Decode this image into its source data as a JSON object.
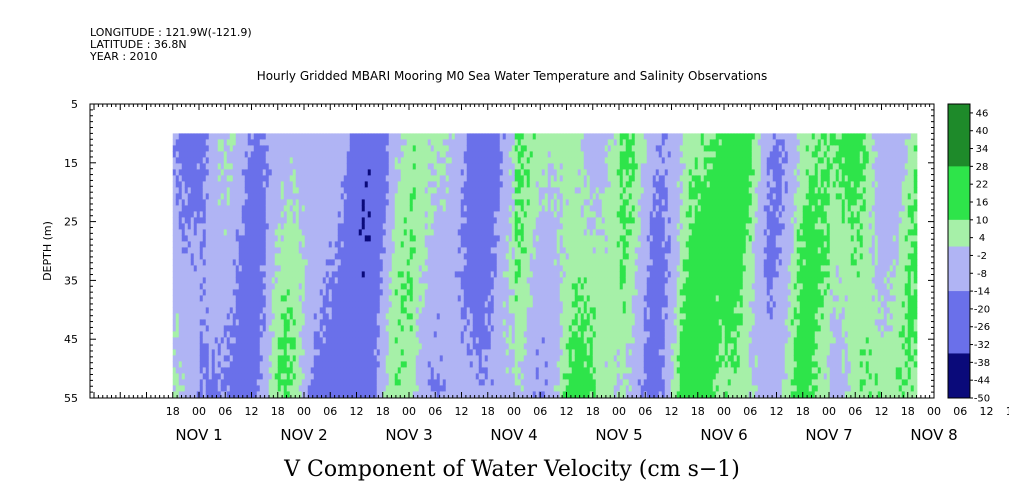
{
  "header": {
    "longitude": "LONGITUDE : 121.9W(-121.9)",
    "latitude": "LATITUDE : 36.8N",
    "year": "YEAR : 2010"
  },
  "chart_data": {
    "type": "heatmap",
    "title": "Hourly Gridded MBARI Mooring M0 Sea Water Temperature and Salinity Observations",
    "xlabel": "V Component of Water Velocity (cm s−1)",
    "ylabel": "DEPTH (m)",
    "y_ticks": [
      5,
      15,
      25,
      35,
      45,
      55
    ],
    "ylim": [
      55,
      5
    ],
    "hour_labels": [
      "18",
      "00",
      "06",
      "12",
      "18",
      "00",
      "06",
      "12",
      "18",
      "00",
      "06",
      "12",
      "18",
      "00",
      "06",
      "12",
      "18",
      "00",
      "06",
      "12",
      "18",
      "00",
      "06",
      "12",
      "18",
      "00",
      "06",
      "12",
      "18",
      "00",
      "06",
      "12",
      "18",
      "00",
      "06",
      "12"
    ],
    "day_labels": [
      "NOV 1",
      "NOV 2",
      "NOV 3",
      "NOV 4",
      "NOV 5",
      "NOV 6",
      "NOV 7",
      "NOV 8"
    ],
    "data_extent": {
      "depth_min": 10,
      "depth_max": 55,
      "start": "Oct 31 18:00",
      "end": "Nov 8 14:00"
    },
    "colorbar_labels": [
      "46",
      "40",
      "34",
      "28",
      "22",
      "16",
      "10",
      "4",
      "-2",
      "-8",
      "-14",
      "-20",
      "-26",
      "-32",
      "-38",
      "-44",
      "-50"
    ],
    "colorbar_range": [
      -50,
      49
    ],
    "colors": {
      "positive_dark": "#1e8a2a",
      "positive": "#2ee44a",
      "positive_light": "#a6f0a8",
      "negative_light": "#b0b4f4",
      "negative": "#6a70ea",
      "negative_dark": "#0a0a7a"
    },
    "value_bands_by_day": [
      {
        "day": "NOV 1",
        "dominant": "negative",
        "range": [
          -20,
          10
        ]
      },
      {
        "day": "NOV 2",
        "dominant": "negative",
        "range": [
          -26,
          8
        ]
      },
      {
        "day": "NOV 3",
        "dominant": "negative",
        "range": [
          -26,
          6
        ]
      },
      {
        "day": "NOV 4",
        "dominant": "mixed",
        "range": [
          -20,
          10
        ]
      },
      {
        "day": "NOV 5",
        "dominant": "positive",
        "range": [
          -14,
          22
        ]
      },
      {
        "day": "NOV 6",
        "dominant": "mixed",
        "range": [
          -14,
          22
        ]
      },
      {
        "day": "NOV 7",
        "dominant": "positive",
        "range": [
          -8,
          22
        ]
      },
      {
        "day": "NOV 8",
        "dominant": "mixed",
        "range": [
          -14,
          16
        ]
      }
    ]
  }
}
